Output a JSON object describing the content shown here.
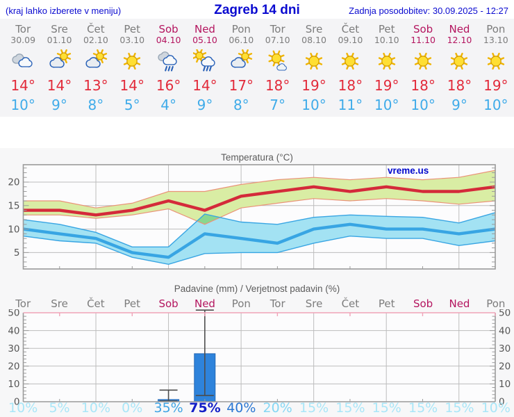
{
  "header": {
    "hint": "(kraj lahko izberete v meniju)",
    "title": "Zagreb 14 dni",
    "updated": "Zadnja posodobitev: 30.09.2025 - 12:27"
  },
  "watermark": "vreme.us",
  "colors": {
    "header_blue": "#0a0ad0",
    "weekday": "#7c7c7c",
    "weekend": "#b4155f",
    "tmax_text": "#e22a3a",
    "tmin_text": "#3fabe9",
    "grid": "#bdbdbd",
    "frame": "#9a9a9a",
    "tick_label": "#555555",
    "precip_top_border": "#f0a3b8",
    "whisker": "#4d4d4d"
  },
  "days": [
    {
      "name": "Tor",
      "date": "30.09",
      "weekend": false,
      "icon": "cloudy",
      "tmax": "14°",
      "tmin": "10°",
      "prob": "10%",
      "prob_color": "#a9e6f8"
    },
    {
      "name": "Sre",
      "date": "01.10",
      "weekend": false,
      "icon": "sun-cloud",
      "tmax": "14°",
      "tmin": "9°",
      "prob": "5%",
      "prob_color": "#a9e6f8"
    },
    {
      "name": "Čet",
      "date": "02.10",
      "weekend": false,
      "icon": "sun-cloud",
      "tmax": "13°",
      "tmin": "8°",
      "prob": "10%",
      "prob_color": "#a9e6f8"
    },
    {
      "name": "Pet",
      "date": "03.10",
      "weekend": false,
      "icon": "sunny",
      "tmax": "14°",
      "tmin": "5°",
      "prob": "0%",
      "prob_color": "#a9e6f8"
    },
    {
      "name": "Sob",
      "date": "04.10",
      "weekend": true,
      "icon": "rain",
      "tmax": "16°",
      "tmin": "4°",
      "prob": "35%",
      "prob_color": "#3fa4e4"
    },
    {
      "name": "Ned",
      "date": "05.10",
      "weekend": true,
      "icon": "sun-rain",
      "tmax": "14°",
      "tmin": "9°",
      "prob": "75%",
      "prob_color": "#131fc7"
    },
    {
      "name": "Pon",
      "date": "06.10",
      "weekend": false,
      "icon": "sun-cloud",
      "tmax": "17°",
      "tmin": "8°",
      "prob": "40%",
      "prob_color": "#2b77d3"
    },
    {
      "name": "Tor",
      "date": "07.10",
      "weekend": false,
      "icon": "sun-small-cloud",
      "tmax": "18°",
      "tmin": "7°",
      "prob": "20%",
      "prob_color": "#85d7f4"
    },
    {
      "name": "Sre",
      "date": "08.10",
      "weekend": false,
      "icon": "sunny",
      "tmax": "19°",
      "tmin": "10°",
      "prob": "15%",
      "prob_color": "#a9e6f8"
    },
    {
      "name": "Čet",
      "date": "09.10",
      "weekend": false,
      "icon": "sunny",
      "tmax": "18°",
      "tmin": "11°",
      "prob": "15%",
      "prob_color": "#a9e6f8"
    },
    {
      "name": "Pet",
      "date": "10.10",
      "weekend": false,
      "icon": "sunny",
      "tmax": "19°",
      "tmin": "10°",
      "prob": "15%",
      "prob_color": "#a9e6f8"
    },
    {
      "name": "Sob",
      "date": "11.10",
      "weekend": true,
      "icon": "sunny",
      "tmax": "18°",
      "tmin": "10°",
      "prob": "15%",
      "prob_color": "#a9e6f8"
    },
    {
      "name": "Ned",
      "date": "12.10",
      "weekend": true,
      "icon": "sunny",
      "tmax": "18°",
      "tmin": "9°",
      "prob": "15%",
      "prob_color": "#a9e6f8"
    },
    {
      "name": "Pon",
      "date": "13.10",
      "weekend": false,
      "icon": "sunny",
      "tmax": "19°",
      "tmin": "10°",
      "prob": "10%",
      "prob_color": "#a9e6f8"
    }
  ],
  "chart_data": [
    {
      "type": "line",
      "title": "Temperatura (°C)",
      "categories": [
        "Tor 30.09",
        "Sre 01.10",
        "Čet 02.10",
        "Pet 03.10",
        "Sob 04.10",
        "Ned 05.10",
        "Pon 06.10",
        "Tor 07.10",
        "Sre 08.10",
        "Čet 09.10",
        "Pet 10.10",
        "Sob 11.10",
        "Ned 12.10",
        "Pon 13.10"
      ],
      "ylabel": "°C",
      "ylim": [
        1.5,
        23.5
      ],
      "yticks": [
        5,
        10,
        15,
        20
      ],
      "grid": true,
      "series": [
        {
          "name": "temp_max",
          "values": [
            14,
            14,
            13,
            14,
            16,
            14,
            17,
            18,
            19,
            18,
            19,
            18,
            18,
            19
          ],
          "color": "#d42a3a"
        },
        {
          "name": "max_upper",
          "values": [
            16,
            16,
            14.5,
            15.5,
            18,
            18,
            19.5,
            20.5,
            21,
            20.5,
            21,
            20.5,
            21,
            22.5
          ]
        },
        {
          "name": "max_lower",
          "values": [
            13,
            13,
            12.3,
            13,
            14.3,
            11,
            14.5,
            15.5,
            16.5,
            16,
            16.5,
            16,
            15.3,
            16
          ]
        },
        {
          "name": "temp_min",
          "values": [
            10,
            9,
            8,
            5,
            4,
            9,
            8,
            7,
            10,
            11,
            10,
            10,
            9,
            10
          ],
          "color": "#38a5e3"
        },
        {
          "name": "min_upper",
          "values": [
            12,
            11,
            9.3,
            6.2,
            6.2,
            13.2,
            11.5,
            11,
            12.5,
            13,
            12.7,
            12.5,
            11.3,
            13.5
          ]
        },
        {
          "name": "min_lower",
          "values": [
            8.5,
            7.5,
            7,
            4,
            2.5,
            4.8,
            5,
            5,
            7,
            8.5,
            8,
            8,
            6.5,
            7.5
          ]
        }
      ],
      "band_colors": {
        "max_band": "#d9eda4",
        "max_band_edge": "#ea9378",
        "min_band": "#a3e2f3",
        "overlap": "#89d78f"
      }
    },
    {
      "type": "bar",
      "title": "Padavine (mm) / Verjetnost padavin (%)",
      "categories": [
        "Tor",
        "Sre",
        "Čet",
        "Pet",
        "Sob",
        "Ned",
        "Pon",
        "Tor",
        "Sre",
        "Čet",
        "Pet",
        "Sob",
        "Ned",
        "Pon"
      ],
      "ylabel": "mm",
      "ylim": [
        0,
        52
      ],
      "yticks": [
        0,
        10,
        20,
        30,
        40,
        50
      ],
      "grid": true,
      "precip_mm": [
        0,
        0,
        0,
        0,
        1.2,
        27,
        0,
        0,
        0,
        0,
        0,
        0,
        0,
        0
      ],
      "whisker_low": [
        null,
        null,
        null,
        null,
        0.4,
        3.5,
        null,
        null,
        null,
        null,
        null,
        null,
        null,
        null
      ],
      "whisker_high": [
        null,
        null,
        null,
        null,
        6.5,
        51.5,
        null,
        null,
        null,
        null,
        null,
        null,
        null,
        null
      ],
      "probability_pct": [
        10,
        5,
        10,
        0,
        35,
        75,
        40,
        20,
        15,
        15,
        15,
        15,
        15,
        10
      ],
      "bar_color": "#2e83db",
      "bar_edge": "#2468b4"
    }
  ]
}
